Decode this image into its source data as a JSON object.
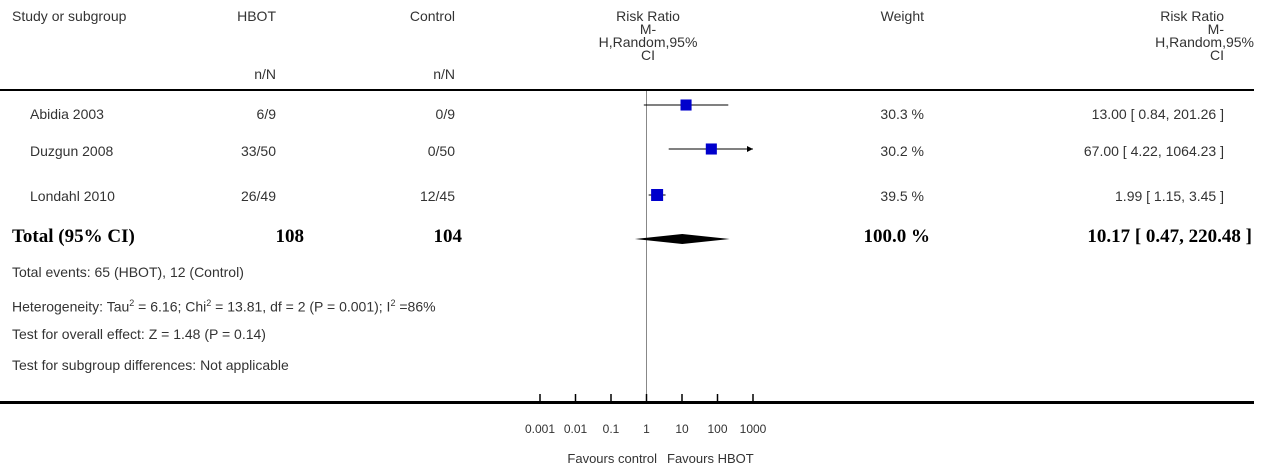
{
  "header": {
    "study": "Study or subgroup",
    "group1": "HBOT",
    "group2": "Control",
    "group1_sub": "n/N",
    "group2_sub": "n/N",
    "rr_title_line1": "Risk Ratio",
    "rr_title_line2": "M-",
    "rr_title_line3": "H,Random,95%",
    "rr_title_line4": "CI",
    "weight": "Weight",
    "rr_col_line1": "Risk Ratio",
    "rr_col_line2": "M-",
    "rr_col_line3": "H,Random,95%",
    "rr_col_line4": "CI"
  },
  "studies": [
    {
      "name": "Abidia 2003",
      "hbot": "6/9",
      "control": "0/9",
      "weight": "30.3 %",
      "ci_text": "13.00 [ 0.84, 201.26 ]"
    },
    {
      "name": "Duzgun 2008",
      "hbot": "33/50",
      "control": "0/50",
      "weight": "30.2 %",
      "ci_text": "67.00 [ 4.22, 1064.23 ]"
    },
    {
      "name": "Londahl 2010",
      "hbot": "26/49",
      "control": "12/45",
      "weight": "39.5 %",
      "ci_text": "1.99 [ 1.15, 3.45 ]"
    }
  ],
  "total": {
    "label": "Total (95% CI)",
    "hbot": "108",
    "control": "104",
    "weight": "100.0 %",
    "ci_text": "10.17 [ 0.47, 220.48 ]"
  },
  "footnotes": {
    "events": "Total events: 65 (HBOT), 12 (Control)",
    "heterogeneity_a": "Heterogeneity: Tau",
    "heterogeneity_b": " = 6.16; Chi",
    "heterogeneity_c": " = 13.81, df = 2 (P = 0.001); I",
    "heterogeneity_d": " =86%",
    "sup2": "2",
    "overall": "Test for overall effect: Z = 1.48 (P = 0.14)",
    "subgroup": "Test for subgroup differences: Not applicable"
  },
  "axis": {
    "favours_left": "Favours control",
    "favours_right": "Favours HBOT"
  },
  "chart_data": {
    "type": "scatter",
    "scale": "log",
    "xlim": [
      0.001,
      1000
    ],
    "ticks": [
      0.001,
      0.01,
      0.1,
      1,
      10,
      100,
      1000
    ],
    "tick_labels": [
      "0.001",
      "0.01",
      "0.1",
      "1",
      "10",
      "100",
      "1000"
    ],
    "null_line": 1,
    "studies": [
      {
        "name": "Abidia 2003",
        "rr": 13.0,
        "lo": 0.84,
        "hi": 201.26,
        "weight": 30.3
      },
      {
        "name": "Duzgun 2008",
        "rr": 67.0,
        "lo": 4.22,
        "hi": 1064.23,
        "weight": 30.2
      },
      {
        "name": "Londahl 2010",
        "rr": 1.99,
        "lo": 1.15,
        "hi": 3.45,
        "weight": 39.5
      }
    ],
    "pooled": {
      "rr": 10.17,
      "lo": 0.47,
      "hi": 220.48
    },
    "colors": {
      "box": "#0000cc",
      "line": "#000000",
      "diamond": "#000000"
    }
  }
}
